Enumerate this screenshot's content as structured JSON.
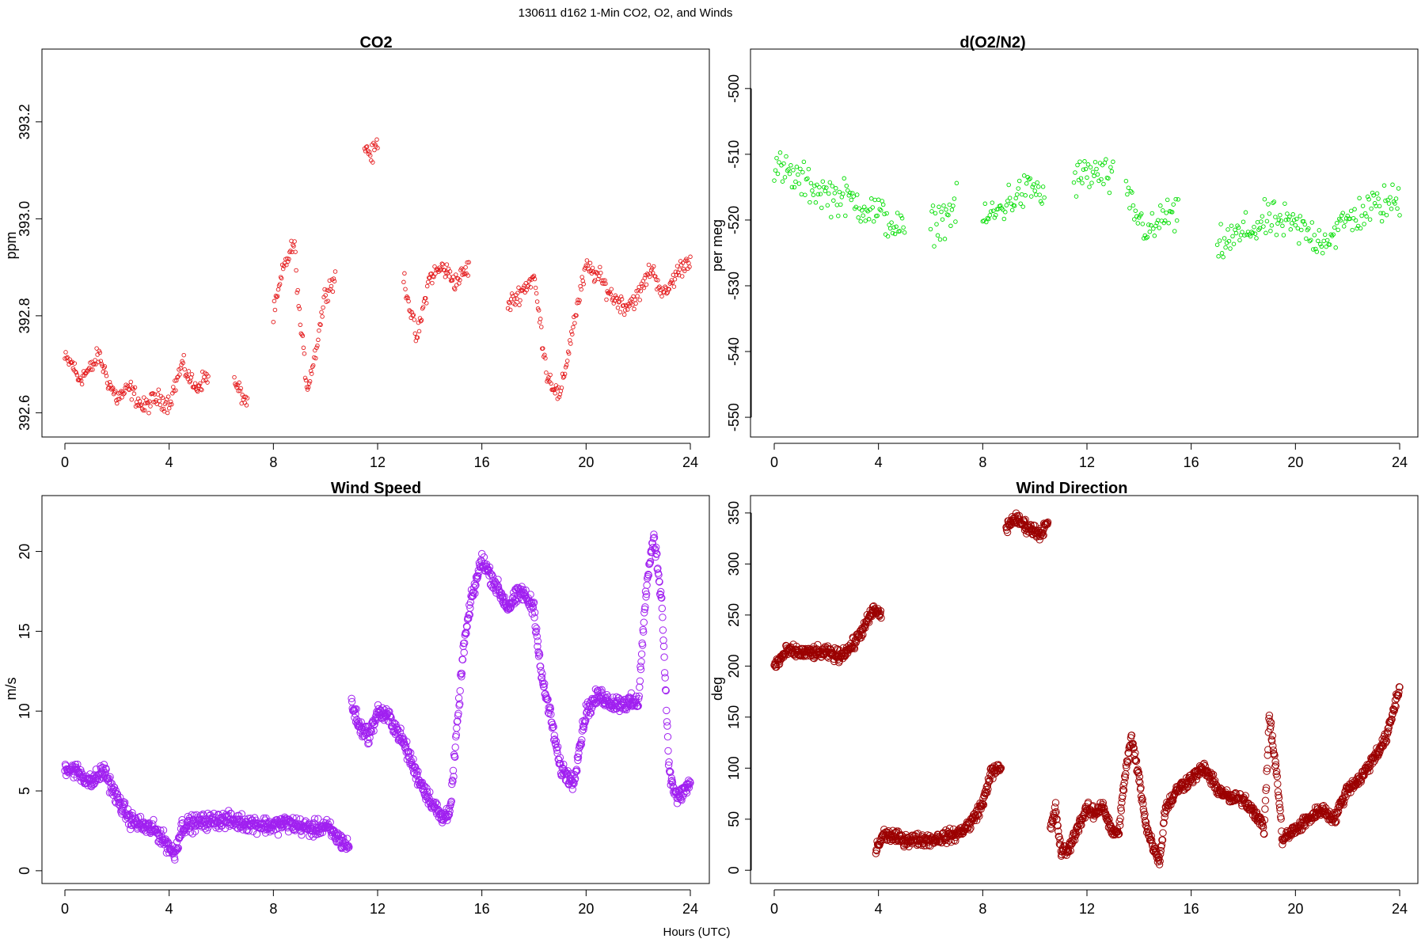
{
  "figure": {
    "title": "130611   d162   1-Min CO2, O2, and Winds",
    "xlabel": "Hours (UTC)"
  },
  "chart_data": [
    {
      "id": "co2",
      "type": "scatter",
      "title": "CO2",
      "ylabel": "ppm",
      "xlabel": "",
      "xlim": [
        0,
        24
      ],
      "ylim": [
        392.55,
        393.35
      ],
      "xticks": [
        0,
        4,
        8,
        12,
        16,
        20,
        24
      ],
      "yticks": [
        392.6,
        392.8,
        393.0,
        393.2
      ],
      "ytick_labels": [
        "392.6",
        "392.8",
        "393.0",
        "393.2"
      ],
      "color": "#e41a1c",
      "grid": false,
      "approx_samples_per_hour": 32,
      "series": [
        {
          "segments": [
            {
              "x": [
                0.0,
                0.3,
                0.5,
                1.0,
                1.3,
                1.7,
                2.0,
                2.5,
                3.0,
                3.5,
                4.0,
                4.5,
                5.0,
                5.5
              ],
              "y": [
                392.71,
                392.7,
                392.67,
                392.69,
                392.72,
                392.66,
                392.63,
                392.65,
                392.61,
                392.63,
                392.62,
                392.7,
                392.65,
                392.68
              ]
            },
            {
              "x": [
                6.5,
                7.0
              ],
              "y": [
                392.66,
                392.62
              ]
            },
            {
              "x": [
                8.0,
                8.4,
                8.8,
                9.0,
                9.3,
                9.6,
                10.0,
                10.4
              ],
              "y": [
                392.8,
                392.9,
                392.95,
                392.8,
                392.65,
                392.72,
                392.85,
                392.88
              ]
            },
            {
              "x": [
                11.5,
                11.8,
                12.0
              ],
              "y": [
                393.15,
                393.13,
                393.16
              ]
            },
            {
              "x": [
                13.0,
                13.5,
                14.0,
                14.5,
                15.0,
                15.5
              ],
              "y": [
                392.88,
                392.75,
                392.88,
                392.9,
                392.87,
                392.9
              ]
            },
            {
              "x": [
                17.0,
                17.5,
                18.0,
                18.5,
                19.0,
                19.5,
                20.0,
                20.5,
                21.0,
                21.5,
                22.0,
                22.5,
                23.0,
                23.5,
                24.0
              ],
              "y": [
                392.82,
                392.85,
                392.88,
                392.68,
                392.63,
                392.78,
                392.9,
                392.88,
                392.84,
                392.82,
                392.84,
                392.9,
                392.84,
                392.89,
                392.92
              ]
            }
          ]
        }
      ]
    },
    {
      "id": "o2",
      "type": "scatter",
      "title": "d(O2/N2)",
      "ylabel": "per meg",
      "xlabel": "",
      "xlim": [
        0,
        24
      ],
      "ylim": [
        -553,
        -494
      ],
      "xticks": [
        0,
        4,
        8,
        12,
        16,
        20,
        24
      ],
      "yticks": [
        -550,
        -540,
        -530,
        -520,
        -510,
        -500
      ],
      "ytick_labels": [
        "-550",
        "-540",
        "-530",
        "-520",
        "-510",
        "-500"
      ],
      "color": "#00dd00",
      "grid": false,
      "approx_samples_per_hour": 22,
      "series": [
        {
          "segments": [
            {
              "x": [
                0.0,
                1.0,
                2.0,
                3.0,
                4.0,
                5.0
              ],
              "y": [
                -512,
                -514,
                -516,
                -517,
                -519,
                -522
              ]
            },
            {
              "x": [
                6.0,
                7.0
              ],
              "y": [
                -521,
                -518
              ]
            },
            {
              "x": [
                8.0,
                8.5,
                9.0,
                9.5,
                10.0,
                10.4
              ],
              "y": [
                -520,
                -519,
                -517,
                -516,
                -515,
                -517
              ]
            },
            {
              "x": [
                11.5,
                12.0,
                12.5,
                13.0
              ],
              "y": [
                -514,
                -513,
                -513,
                -514
              ]
            },
            {
              "x": [
                13.5,
                14.0,
                14.5,
                15.0,
                15.5
              ],
              "y": [
                -516,
                -520,
                -522,
                -519,
                -520
              ]
            },
            {
              "x": [
                17.0,
                18.0,
                19.0,
                20.0,
                21.0,
                21.5,
                22.0,
                23.0,
                24.0
              ],
              "y": [
                -524,
                -522,
                -520,
                -521,
                -523,
                -522,
                -520,
                -518,
                -517
              ]
            }
          ]
        }
      ]
    },
    {
      "id": "wind-speed",
      "type": "scatter",
      "title": "Wind Speed",
      "ylabel": "m/s",
      "xlabel": "",
      "xlim": [
        0,
        24
      ],
      "ylim": [
        -0.8,
        23.5
      ],
      "xticks": [
        0,
        4,
        8,
        12,
        16,
        20,
        24
      ],
      "yticks": [
        0,
        5,
        10,
        15,
        20
      ],
      "ytick_labels": [
        "0",
        "5",
        "10",
        "15",
        "20"
      ],
      "color": "#a020f0",
      "grid": false,
      "approx_samples_per_hour": 60,
      "series": [
        {
          "segments": [
            {
              "x": [
                0.0,
                0.5,
                1.0,
                1.5,
                2.0,
                2.5,
                3.0,
                3.5,
                4.0,
                4.2,
                4.5,
                5.0,
                6.0,
                7.0,
                8.0,
                8.5,
                9.0,
                9.5,
                10.0,
                10.5,
                10.9
              ],
              "y": [
                6.5,
                6.2,
                5.5,
                6.3,
                4.5,
                3.2,
                2.8,
                2.5,
                1.5,
                1.0,
                2.8,
                3.0,
                3.2,
                3.0,
                2.8,
                3.0,
                2.8,
                2.6,
                2.8,
                2.0,
                1.5
              ]
            },
            {
              "x": [
                11.0,
                11.3,
                11.7,
                12.0,
                12.5,
                13.0,
                13.5,
                14.0,
                14.5,
                14.8,
                15.0,
                15.3,
                15.6,
                16.0,
                16.5,
                17.0,
                17.5,
                18.0,
                18.3,
                18.6,
                19.0,
                19.5,
                20.0,
                20.5,
                21.0,
                21.5,
                22.0,
                22.3,
                22.6,
                22.9,
                23.2,
                23.5,
                24.0
              ],
              "y": [
                10.5,
                9.0,
                8.5,
                10.0,
                9.5,
                8.0,
                6.0,
                4.5,
                3.2,
                4.0,
                8.0,
                14.0,
                17.0,
                19.5,
                18.0,
                16.5,
                17.5,
                16.5,
                12.0,
                10.0,
                6.5,
                5.5,
                10.0,
                11.0,
                10.5,
                10.5,
                10.5,
                17.5,
                21.0,
                17.0,
                6.0,
                4.5,
                5.5
              ]
            }
          ]
        }
      ]
    },
    {
      "id": "wind-direction",
      "type": "scatter",
      "title": "Wind Direction",
      "ylabel": "deg",
      "xlabel": "",
      "xlim": [
        0,
        24
      ],
      "ylim": [
        -13,
        367
      ],
      "xticks": [
        0,
        4,
        8,
        12,
        16,
        20,
        24
      ],
      "yticks": [
        0,
        50,
        100,
        150,
        200,
        250,
        300,
        350
      ],
      "ytick_labels": [
        "0",
        "50",
        "100",
        "150",
        "200",
        "250",
        "300",
        "350"
      ],
      "color": "#9b0000",
      "grid": false,
      "approx_samples_per_hour": 60,
      "series": [
        {
          "segments": [
            {
              "x": [
                0.0,
                0.5,
                1.0,
                2.0,
                2.5,
                3.0,
                3.5,
                3.8,
                4.1
              ],
              "y": [
                200,
                215,
                213,
                213,
                210,
                220,
                240,
                255,
                250
              ]
            },
            {
              "x": [
                3.9,
                4.2,
                5.0,
                6.0,
                7.0,
                7.5,
                8.0,
                8.3,
                8.7
              ],
              "y": [
                20,
                35,
                30,
                30,
                35,
                45,
                65,
                95,
                100
              ]
            },
            {
              "x": [
                8.9,
                9.2,
                9.5,
                9.8,
                10.2,
                10.5
              ],
              "y": [
                335,
                345,
                340,
                335,
                330,
                340
              ]
            },
            {
              "x": [
                10.6,
                10.8,
                11.0,
                11.3,
                11.6,
                12.0,
                12.3,
                12.6,
                12.9,
                13.2,
                13.5,
                13.7,
                14.0,
                14.3,
                14.6,
                14.8,
                15.0,
                15.5,
                16.0,
                16.5,
                17.0,
                17.5,
                18.0,
                18.5,
                18.8,
                19.0,
                19.3,
                19.5,
                20.0,
                20.5,
                21.0,
                21.5,
                22.0,
                22.5,
                23.0,
                23.5,
                24.0
              ],
              "y": [
                40,
                60,
                18,
                20,
                40,
                60,
                55,
                65,
                40,
                35,
                100,
                130,
                90,
                40,
                20,
                10,
                60,
                80,
                90,
                100,
                80,
                70,
                70,
                55,
                40,
                150,
                90,
                30,
                40,
                50,
                60,
                50,
                80,
                90,
                110,
                130,
                180
              ]
            }
          ]
        }
      ]
    }
  ]
}
